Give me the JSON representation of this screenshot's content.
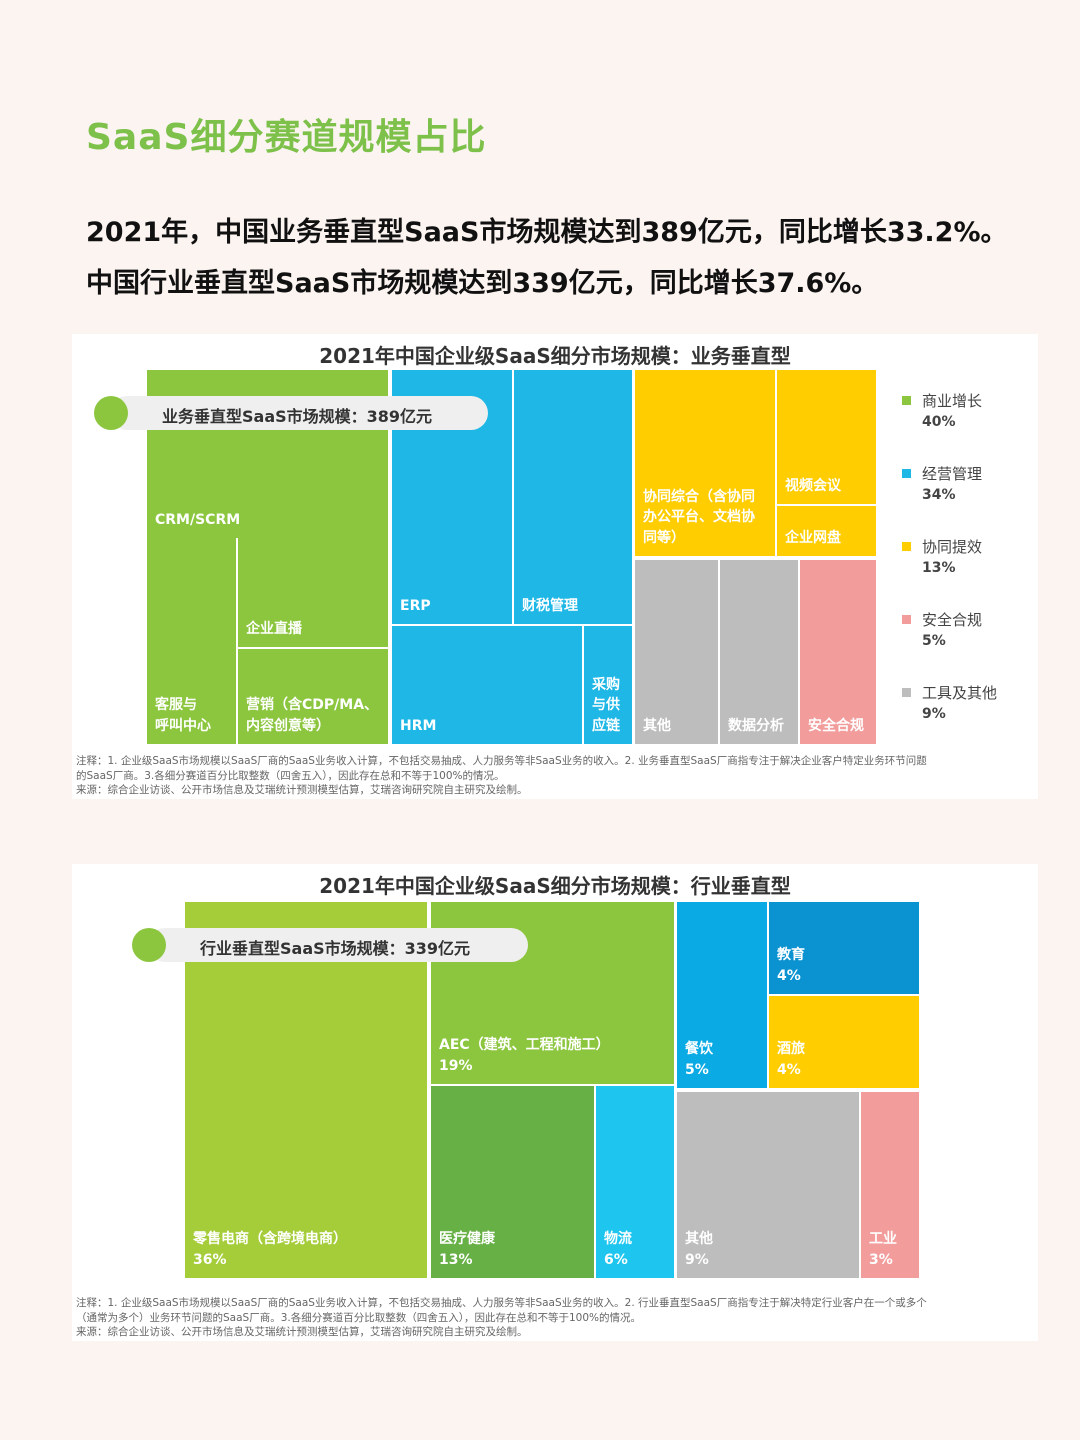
{
  "page": {
    "title": "SaaS细分赛道规模占比",
    "intro_line1": "2021年，中国业务垂直型SaaS市场规模达到389亿元，同比增长33.2%。",
    "intro_line2": "中国行业垂直型SaaS市场规模达到339亿元，同比增长37.6%。"
  },
  "chart_data": [
    {
      "type": "treemap",
      "title": "2021年中国企业级SaaS细分市场规模：业务垂直型",
      "total_label": "业务垂直型SaaS市场规模：389亿元",
      "total": 389,
      "unit": "亿元",
      "legend": [
        {
          "name": "商业增长",
          "value": "40%",
          "color": "#8cc63f"
        },
        {
          "name": "经营管理",
          "value": "34%",
          "color": "#1eb7e6"
        },
        {
          "name": "协同提效",
          "value": "13%",
          "color": "#ffcd00"
        },
        {
          "name": "安全合规",
          "value": "5%",
          "color": "#f29c9c"
        },
        {
          "name": "工具及其他",
          "value": "9%",
          "color": "#bdbdbd"
        }
      ],
      "tiles": [
        {
          "id": "crm",
          "group": "商业增长",
          "lines": [
            "CRM/SCRM"
          ],
          "color": "#8cc63f"
        },
        {
          "id": "customer-service",
          "group": "商业增长",
          "lines": [
            "客服与",
            "呼叫中心"
          ],
          "color": "#8cc63f"
        },
        {
          "id": "live",
          "group": "商业增长",
          "lines": [
            "企业直播"
          ],
          "color": "#8cc63f"
        },
        {
          "id": "marketing",
          "group": "商业增长",
          "lines": [
            "营销（含CDP/MA、",
            "内容创意等）"
          ],
          "color": "#8cc63f"
        },
        {
          "id": "erp",
          "group": "经营管理",
          "lines": [
            "ERP"
          ],
          "color": "#1eb7e6"
        },
        {
          "id": "finance-tax",
          "group": "经营管理",
          "lines": [
            "财税管理"
          ],
          "color": "#1eb7e6"
        },
        {
          "id": "hrm",
          "group": "经营管理",
          "lines": [
            "HRM"
          ],
          "color": "#1eb7e6"
        },
        {
          "id": "procurement",
          "group": "经营管理",
          "lines": [
            "采购",
            "与供",
            "应链"
          ],
          "color": "#1eb7e6"
        },
        {
          "id": "collab-suite",
          "group": "协同提效",
          "lines": [
            "协同综合（含协同",
            "办公平台、文档协",
            "同等）"
          ],
          "color": "#ffcd00"
        },
        {
          "id": "video-meeting",
          "group": "协同提效",
          "lines": [
            "视频会议"
          ],
          "color": "#ffcd00"
        },
        {
          "id": "cloud-disk",
          "group": "协同提效",
          "lines": [
            "企业网盘"
          ],
          "color": "#ffcd00"
        },
        {
          "id": "other",
          "group": "工具及其他",
          "lines": [
            "其他"
          ],
          "color": "#bdbdbd"
        },
        {
          "id": "data-analysis",
          "group": "工具及其他",
          "lines": [
            "数据分析"
          ],
          "color": "#bdbdbd"
        },
        {
          "id": "security",
          "group": "安全合规",
          "lines": [
            "安全合规"
          ],
          "color": "#f29c9c"
        }
      ],
      "notes": [
        "注释：1. 企业级SaaS市场规模以SaaS厂商的SaaS业务收入计算，不包括交易抽成、人力服务等非SaaS业务的收入。2. 业务垂直型SaaS厂商指专注于解决企业客户特定业务环节问题",
        "的SaaS厂商。3.各细分赛道百分比取整数（四舍五入），因此存在总和不等于100%的情况。",
        "来源：综合企业访谈、公开市场信息及艾瑞统计预测模型估算，艾瑞咨询研究院自主研究及绘制。"
      ]
    },
    {
      "type": "treemap",
      "title": "2021年中国企业级SaaS细分市场规模：行业垂直型",
      "total_label": "行业垂直型SaaS市场规模：339亿元",
      "total": 339,
      "unit": "亿元",
      "tiles": [
        {
          "id": "retail",
          "name": "零售电商（含跨境电商）",
          "value": "36%",
          "color": "#a5cd39"
        },
        {
          "id": "aec",
          "name": "AEC（建筑、工程和施工）",
          "value": "19%",
          "color": "#8cc63f"
        },
        {
          "id": "healthcare",
          "name": "医疗健康",
          "value": "13%",
          "color": "#66b046"
        },
        {
          "id": "logistics",
          "name": "物流",
          "value": "6%",
          "color": "#1ec6ef"
        },
        {
          "id": "catering",
          "name": "餐饮",
          "value": "5%",
          "color": "#0aaae4"
        },
        {
          "id": "education",
          "name": "教育",
          "value": "4%",
          "color": "#0b92d0"
        },
        {
          "id": "hotel",
          "name": "酒旅",
          "value": "4%",
          "color": "#ffcd00"
        },
        {
          "id": "other",
          "name": "其他",
          "value": "9%",
          "color": "#bdbdbd"
        },
        {
          "id": "industry",
          "name": "工业",
          "value": "3%",
          "color": "#f29c9c"
        }
      ],
      "notes": [
        "注释：1. 企业级SaaS市场规模以SaaS厂商的SaaS业务收入计算，不包括交易抽成、人力服务等非SaaS业务的收入。2. 行业垂直型SaaS厂商指专注于解决特定行业客户在一个或多个",
        "（通常为多个）业务环节问题的SaaS厂商。3.各细分赛道百分比取整数（四舍五入），因此存在总和不等于100%的情况。",
        "来源：综合企业访谈、公开市场信息及艾瑞统计预测模型估算，艾瑞咨询研究院自主研究及绘制。"
      ]
    }
  ]
}
